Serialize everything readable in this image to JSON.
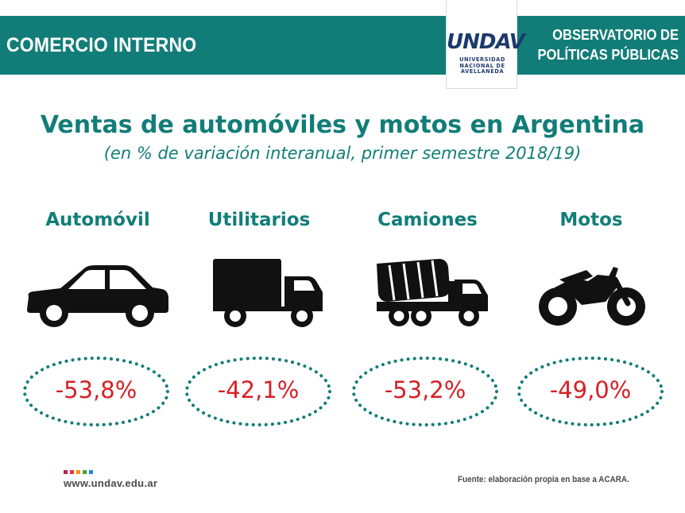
{
  "header": {
    "section": "COMERCIO INTERNO",
    "org_line1": "OBSERVATORIO DE",
    "org_line2": "POLÍTICAS PÚBLICAS",
    "logo_mark": "UNDAV",
    "logo_line1": "UNIVERSIDAD",
    "logo_line2": "NACIONAL DE",
    "logo_line3": "AVELLANEDA"
  },
  "colors": {
    "brand": "#127d78",
    "value": "#d61f26",
    "dots": "#127d78",
    "icon": "#111111",
    "squares": [
      "#c2185b",
      "#e53935",
      "#fb8c00",
      "#43a047",
      "#1e88e5"
    ]
  },
  "chart_data": {
    "type": "table",
    "title": "Ventas de automóviles y motos en Argentina",
    "subtitle": "(en % de variación interanual, primer semestre 2018/19)",
    "categories": [
      "Automóvil",
      "Utilitarios",
      "Camiones",
      "Motos"
    ],
    "values": [
      -53.8,
      -42.1,
      -53.2,
      -49.0
    ],
    "value_labels": [
      "-53,8%",
      "-42,1%",
      "-53,2%",
      "-49,0%"
    ],
    "icons": [
      "car-icon",
      "truck-icon",
      "cement-truck-icon",
      "motorcycle-icon"
    ]
  },
  "footer": {
    "website": "www.undav.edu.ar",
    "source": "Fuente: elaboración propia en base a ACARA."
  }
}
